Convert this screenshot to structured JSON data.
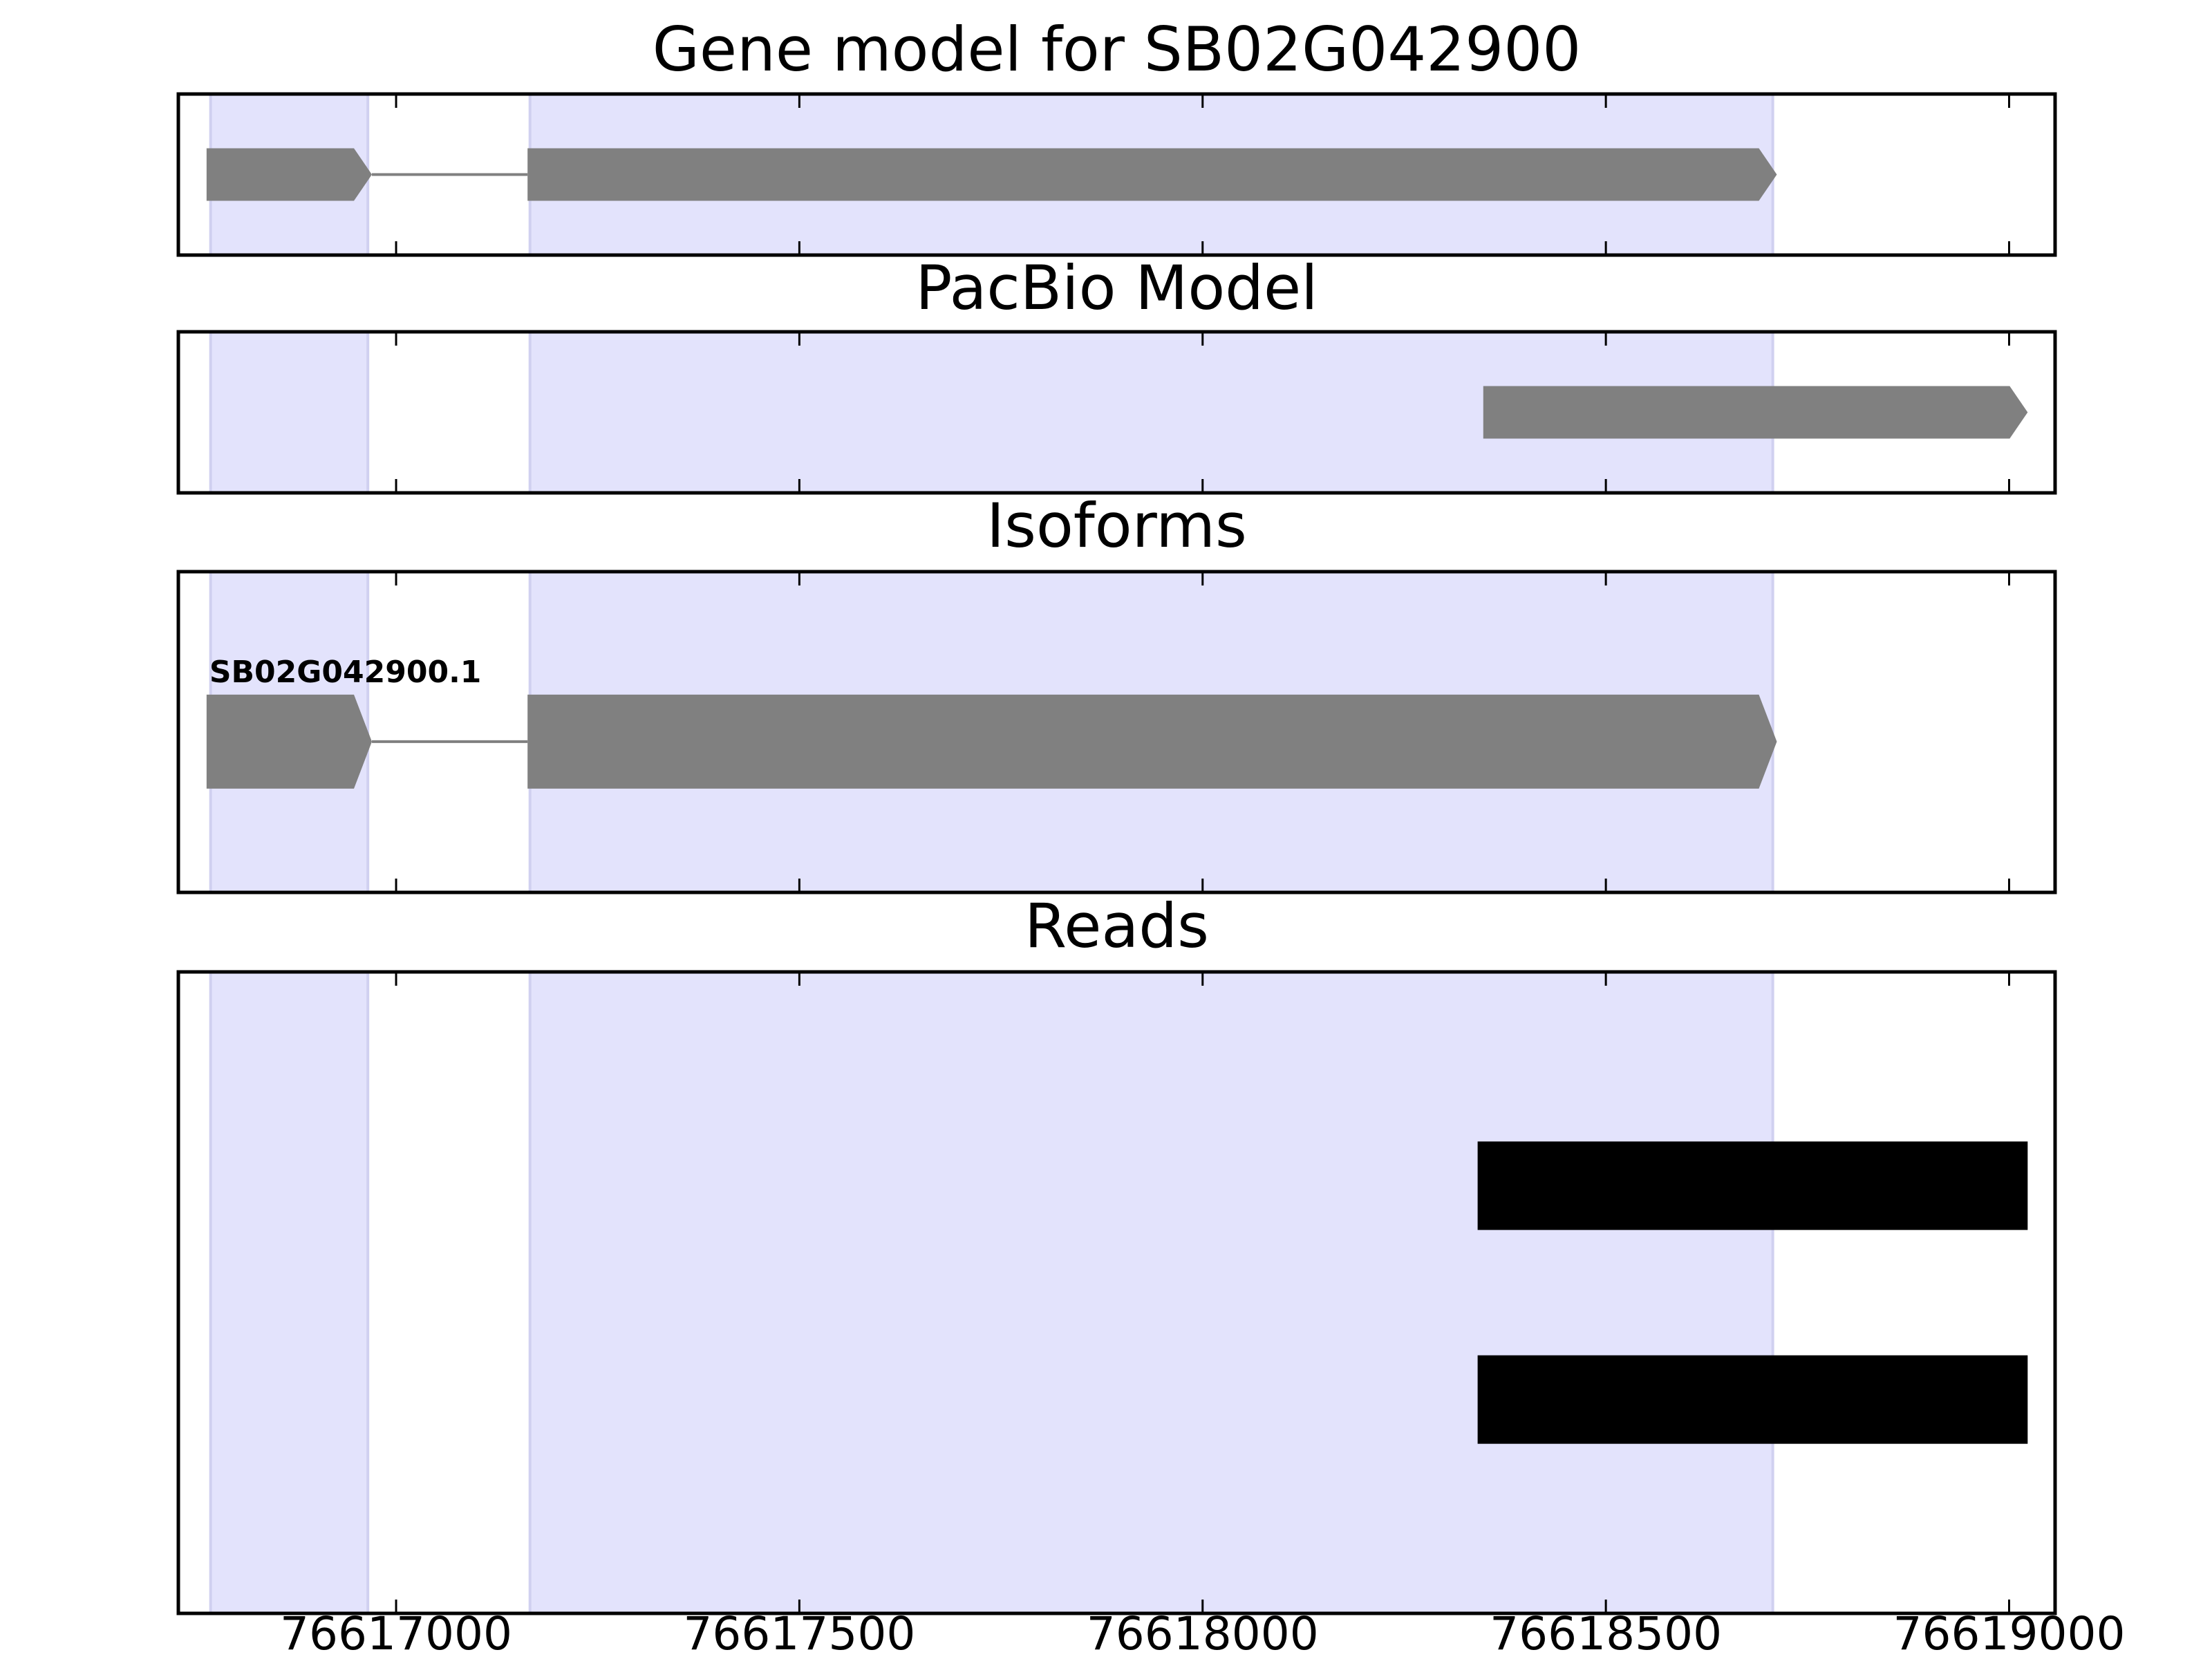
{
  "chart_data": {
    "type": "gene-tracks",
    "xlim": [
      76616730,
      76619057
    ],
    "xticks": [
      76617000,
      76617500,
      76618000,
      76618500,
      76619000
    ],
    "highlights": [
      [
        76616770,
        76616965
      ],
      [
        76617166,
        76618707
      ]
    ],
    "highlight_color": "#e3e3fc",
    "panels": [
      {
        "title": "Gene model for SB02G042900",
        "color": "#808080",
        "strand": "+",
        "rows": [
          {
            "exons": [
              [
                76616765,
                76616970
              ],
              [
                76617163,
                76618712
              ]
            ]
          }
        ]
      },
      {
        "title": "PacBio Model",
        "color": "#808080",
        "strand": "+",
        "rows": [
          {
            "exons": [
              [
                76618348,
                76619023
              ]
            ]
          }
        ]
      },
      {
        "title": "Isoforms",
        "color": "#808080",
        "strand": "+",
        "rows": [
          {
            "label": "SB02G042900.1",
            "exons": [
              [
                76616765,
                76616970
              ],
              [
                76617163,
                76618712
              ]
            ]
          }
        ]
      },
      {
        "title": "Reads",
        "color": "#000000",
        "rows": [
          {
            "exons": [
              [
                76618341,
                76619023
              ]
            ]
          },
          {
            "exons": [
              [
                76618341,
                76619023
              ]
            ]
          }
        ]
      }
    ]
  }
}
